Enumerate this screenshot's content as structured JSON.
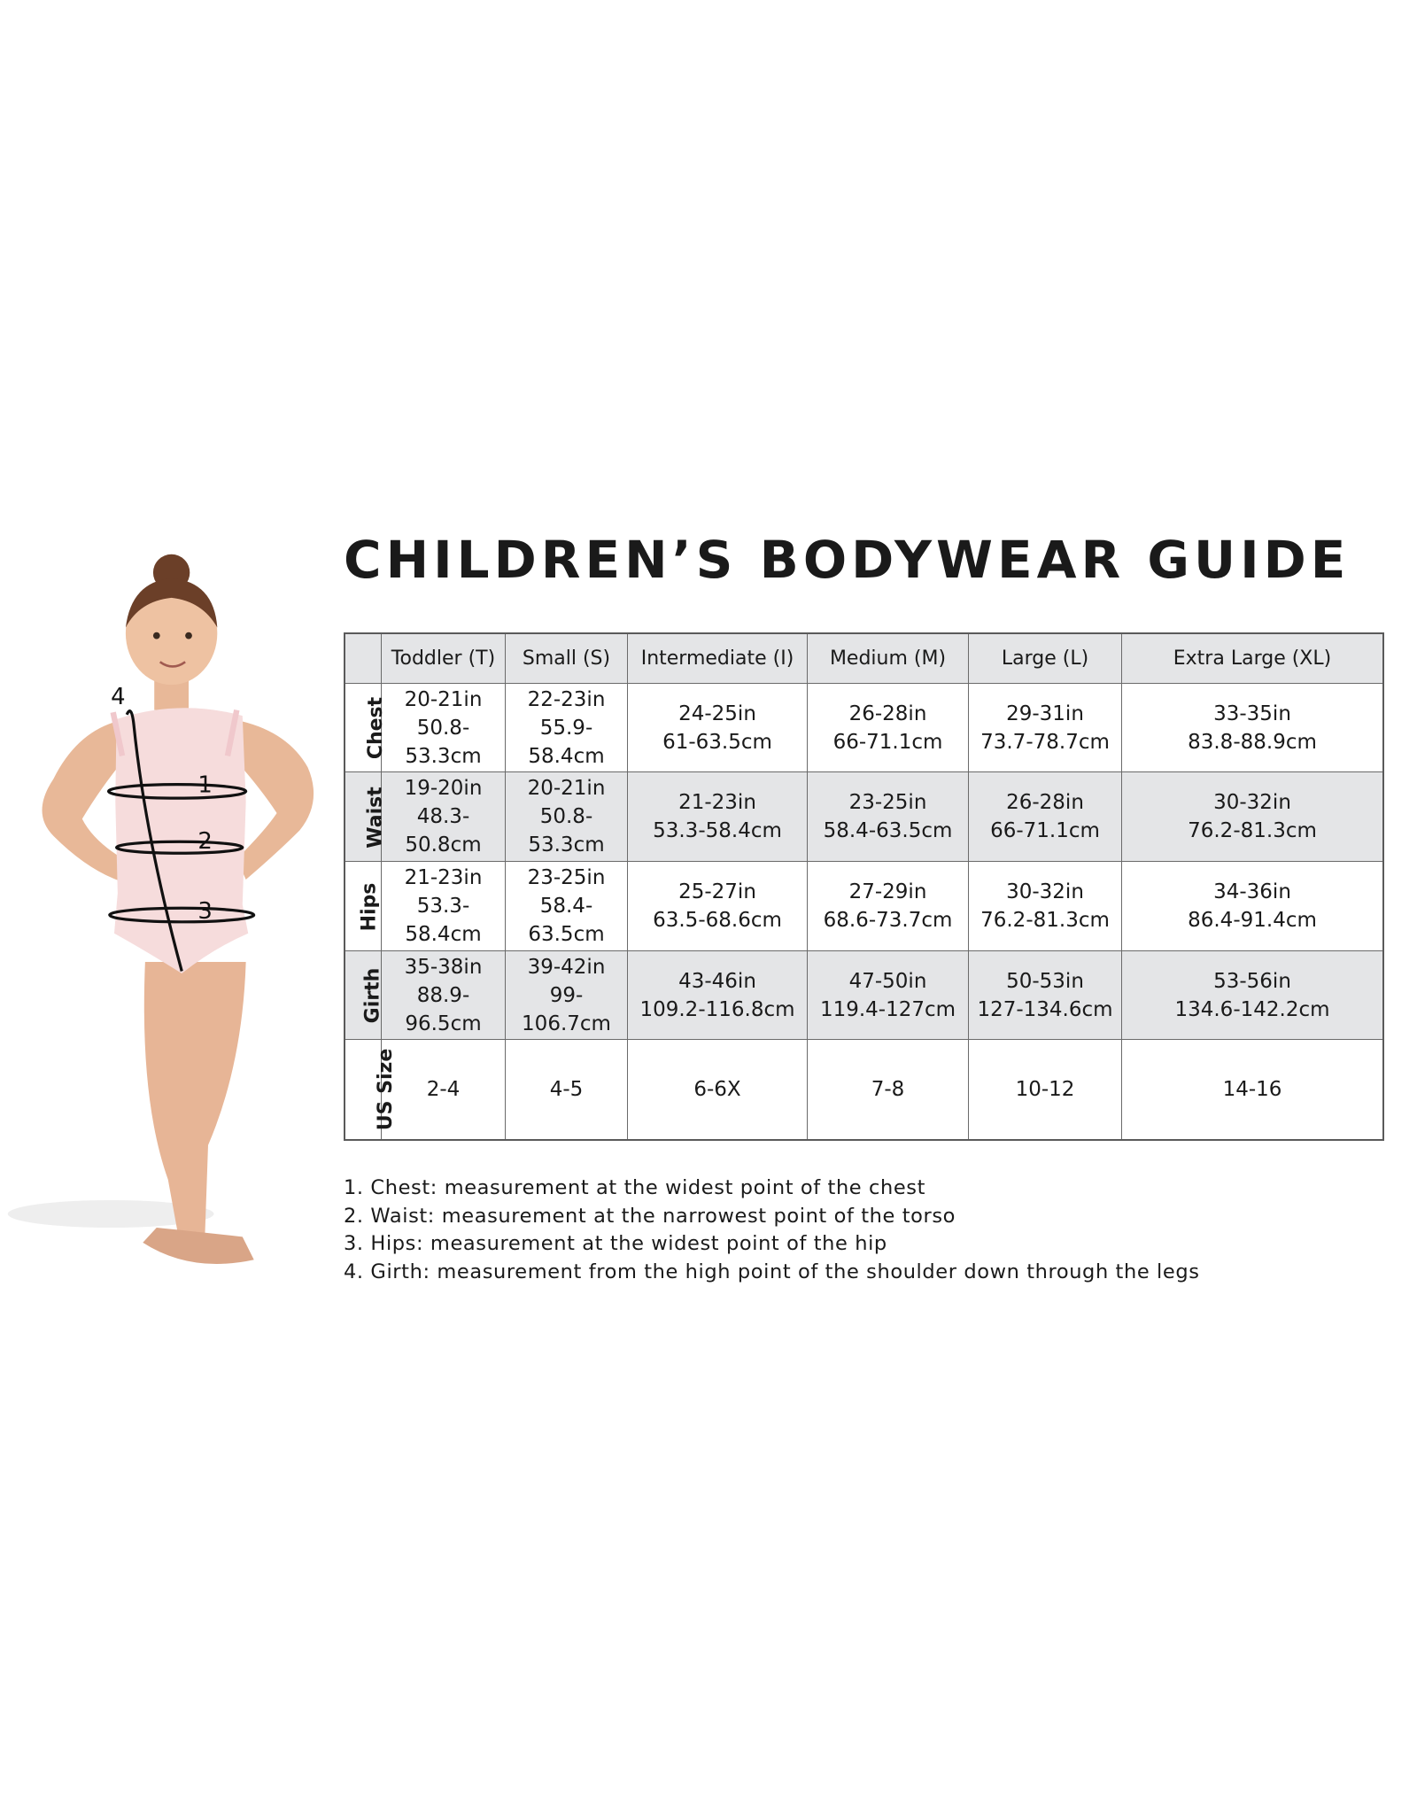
{
  "title": "CHILDREN’S BODYWEAR GUIDE",
  "figure": {
    "labels": [
      "1",
      "2",
      "3",
      "4"
    ]
  },
  "table": {
    "columns": [
      "Toddler (T)",
      "Small (S)",
      "Intermediate (I)",
      "Medium (M)",
      "Large (L)",
      "Extra Large (XL)"
    ],
    "rows": [
      {
        "label": "Chest",
        "cells": [
          [
            "20-21in",
            "50.8-53.3cm"
          ],
          [
            "22-23in",
            "55.9-58.4cm"
          ],
          [
            "24-25in",
            "61-63.5cm"
          ],
          [
            "26-28in",
            "66-71.1cm"
          ],
          [
            "29-31in",
            "73.7-78.7cm"
          ],
          [
            "33-35in",
            "83.8-88.9cm"
          ]
        ]
      },
      {
        "label": "Waist",
        "cells": [
          [
            "19-20in",
            "48.3-50.8cm"
          ],
          [
            "20-21in",
            "50.8-53.3cm"
          ],
          [
            "21-23in",
            "53.3-58.4cm"
          ],
          [
            "23-25in",
            "58.4-63.5cm"
          ],
          [
            "26-28in",
            "66-71.1cm"
          ],
          [
            "30-32in",
            "76.2-81.3cm"
          ]
        ]
      },
      {
        "label": "Hips",
        "cells": [
          [
            "21-23in",
            "53.3-58.4cm"
          ],
          [
            "23-25in",
            "58.4-63.5cm"
          ],
          [
            "25-27in",
            "63.5-68.6cm"
          ],
          [
            "27-29in",
            "68.6-73.7cm"
          ],
          [
            "30-32in",
            "76.2-81.3cm"
          ],
          [
            "34-36in",
            "86.4-91.4cm"
          ]
        ]
      },
      {
        "label": "Girth",
        "cells": [
          [
            "35-38in",
            "88.9-96.5cm"
          ],
          [
            "39-42in",
            "99-106.7cm"
          ],
          [
            "43-46in",
            "109.2-116.8cm"
          ],
          [
            "47-50in",
            "119.4-127cm"
          ],
          [
            "50-53in",
            "127-134.6cm"
          ],
          [
            "53-56in",
            "134.6-142.2cm"
          ]
        ]
      },
      {
        "label": "US Size",
        "cells": [
          [
            "2-4"
          ],
          [
            "4-5"
          ],
          [
            "6-6X"
          ],
          [
            "7-8"
          ],
          [
            "10-12"
          ],
          [
            "14-16"
          ]
        ]
      }
    ]
  },
  "notes": [
    "1. Chest: measurement at the widest point of the chest",
    "2. Waist: measurement at the narrowest point of the torso",
    "3. Hips: measurement at the widest point of the hip",
    "4. Girth: measurement from the high point of the shoulder down through the legs"
  ],
  "colors": {
    "header_bg": "#e4e5e7",
    "leotard": "#f6dcdc",
    "skin": "#e8b898",
    "tights": "#e7b596",
    "hair": "#6b3f28"
  }
}
